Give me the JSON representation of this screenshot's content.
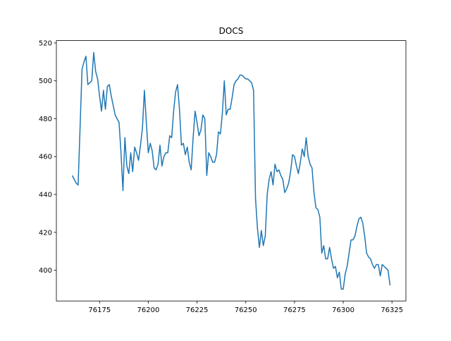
{
  "chart_data": {
    "type": "line",
    "title": "DOCS",
    "x": [
      76161,
      76162,
      76163,
      76164,
      76165,
      76166,
      76167,
      76168,
      76169,
      76170,
      76171,
      76172,
      76173,
      76174,
      76175,
      76176,
      76177,
      76178,
      76179,
      76180,
      76181,
      76182,
      76183,
      76184,
      76185,
      76186,
      76187,
      76188,
      76189,
      76190,
      76191,
      76192,
      76193,
      76194,
      76195,
      76196,
      76197,
      76198,
      76199,
      76200,
      76201,
      76202,
      76203,
      76204,
      76205,
      76206,
      76207,
      76208,
      76209,
      76210,
      76211,
      76212,
      76213,
      76214,
      76215,
      76216,
      76217,
      76218,
      76219,
      76220,
      76221,
      76222,
      76223,
      76224,
      76225,
      76226,
      76227,
      76228,
      76229,
      76230,
      76231,
      76232,
      76233,
      76234,
      76235,
      76236,
      76237,
      76238,
      76239,
      76240,
      76241,
      76242,
      76243,
      76244,
      76245,
      76246,
      76247,
      76248,
      76249,
      76250,
      76251,
      76252,
      76253,
      76254,
      76255,
      76256,
      76257,
      76258,
      76259,
      76260,
      76261,
      76262,
      76263,
      76264,
      76265,
      76266,
      76267,
      76268,
      76269,
      76270,
      76271,
      76272,
      76273,
      76274,
      76275,
      76276,
      76277,
      76278,
      76279,
      76280,
      76281,
      76282,
      76283,
      76284,
      76285,
      76286,
      76287,
      76288,
      76289,
      76290,
      76291,
      76292,
      76293,
      76294,
      76295,
      76296,
      76297,
      76298,
      76299,
      76300,
      76301,
      76302,
      76303,
      76304,
      76305,
      76306,
      76307,
      76308,
      76309,
      76310,
      76311,
      76312,
      76313,
      76314,
      76315,
      76316,
      76317,
      76318,
      76319,
      76320,
      76321,
      76322,
      76323,
      76324
    ],
    "series": [
      {
        "color": "#1f77b4",
        "values": [
          450,
          448,
          446,
          445,
          475,
          506,
          510,
          513,
          498,
          499,
          500,
          515,
          505,
          501,
          492,
          484,
          495,
          485,
          497,
          498,
          492,
          487,
          482,
          480,
          478,
          462,
          442,
          470,
          455,
          451,
          462,
          452,
          465,
          462,
          458,
          466,
          475,
          495,
          478,
          462,
          467,
          463,
          454,
          453,
          456,
          466,
          455,
          460,
          462,
          462,
          471,
          470,
          484,
          494,
          498,
          485,
          466,
          467,
          461,
          465,
          457,
          453,
          470,
          484,
          478,
          471,
          474,
          482,
          480,
          450,
          462,
          460,
          457,
          457,
          461,
          473,
          472,
          483,
          500,
          482,
          485,
          485,
          491,
          498,
          500,
          501,
          503,
          503,
          502,
          501,
          501,
          500,
          499,
          495,
          438,
          422,
          412,
          421,
          413,
          418,
          440,
          448,
          452,
          445,
          456,
          452,
          453,
          450,
          448,
          441,
          443,
          446,
          452,
          461,
          460,
          455,
          451,
          457,
          464,
          460,
          470,
          460,
          456,
          454,
          441,
          433,
          432,
          428,
          409,
          413,
          406,
          406,
          412,
          406,
          401,
          402,
          396,
          399,
          390,
          390,
          398,
          402,
          409,
          416,
          416,
          418,
          423,
          427,
          428,
          425,
          418,
          409,
          407,
          406,
          403,
          401,
          403,
          403,
          397,
          403,
          402,
          401,
          400,
          392
        ]
      }
    ],
    "xlim": [
      76152.85,
      76332.15
    ],
    "ylim": [
      383.75,
      521.25
    ],
    "xticks": [
      76175,
      76200,
      76225,
      76250,
      76275,
      76300,
      76325
    ],
    "yticks": [
      400,
      420,
      440,
      460,
      480,
      500,
      520
    ]
  }
}
